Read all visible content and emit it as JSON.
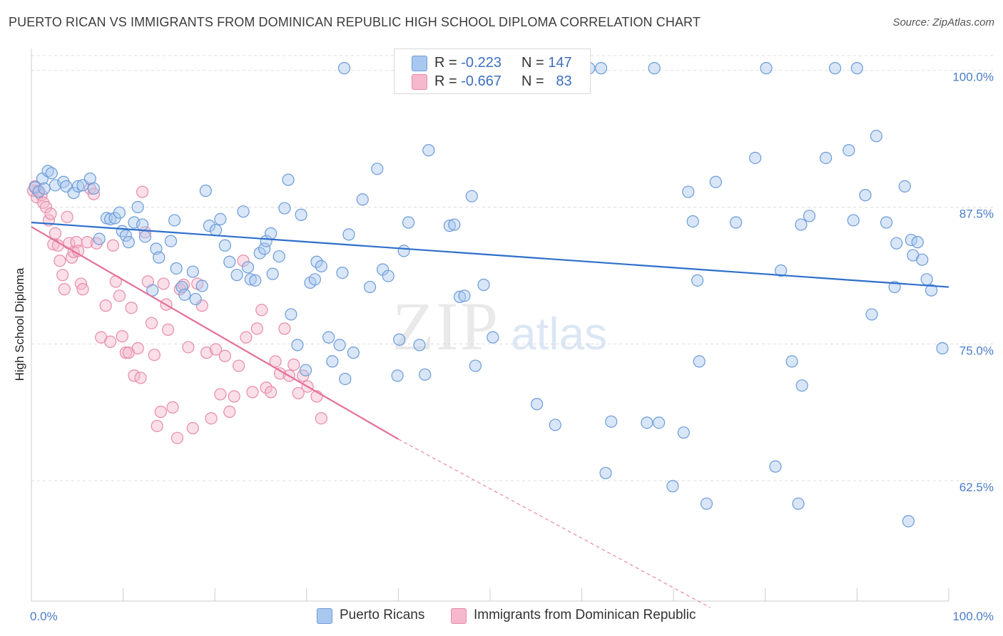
{
  "title": "PUERTO RICAN VS IMMIGRANTS FROM DOMINICAN REPUBLIC HIGH SCHOOL DIPLOMA CORRELATION CHART",
  "source": "Source: ZipAtlas.com",
  "watermark": {
    "zip": "ZIP",
    "atlas": "atlas"
  },
  "legend": {
    "rows": [
      {
        "r_label": "R =",
        "r_value": "-0.223",
        "n_label": "N =",
        "n_value": "147"
      },
      {
        "r_label": "R =",
        "r_value": "-0.667",
        "n_label": "N =",
        "n_value": "83"
      }
    ]
  },
  "bottom_legend": [
    "Puerto Ricans",
    "Immigrants from Dominican Republic"
  ],
  "colors": {
    "blue_fill": "#a9c8f0",
    "blue_stroke": "#6c9bd8",
    "blue_line": "#2e6fcb",
    "pink_fill": "#f5b8cc",
    "pink_stroke": "#e88aa8",
    "pink_line": "#e4709a",
    "tick_text": "#4a7cc9",
    "grid": "#dddddd"
  },
  "chart_data": {
    "type": "scatter",
    "title": "PUERTO RICAN VS IMMIGRANTS FROM DOMINICAN REPUBLIC HIGH SCHOOL DIPLOMA CORRELATION CHART",
    "xlabel": "",
    "ylabel": "High School Diploma",
    "xlim": [
      0,
      100
    ],
    "ylim": [
      51.5,
      102
    ],
    "x_tick_labels": [
      "0.0%",
      "100.0%"
    ],
    "y_ticks": [
      62.5,
      75.0,
      87.5,
      100.0
    ],
    "y_tick_labels": [
      "62.5%",
      "75.0%",
      "87.5%",
      "100.0%"
    ],
    "grid": true,
    "legend_position": "top-center",
    "series": [
      {
        "name": "Puerto Ricans",
        "r": -0.223,
        "n": 147,
        "trend": {
          "x": [
            0,
            100
          ],
          "y": [
            86.1,
            80.2
          ]
        },
        "points": [
          [
            0.4,
            89.3
          ],
          [
            0.8,
            88.9
          ],
          [
            1.2,
            90.1
          ],
          [
            1.8,
            90.8
          ],
          [
            1.4,
            89.2
          ],
          [
            2.2,
            90.6
          ],
          [
            2.6,
            89.5
          ],
          [
            3.5,
            89.8
          ],
          [
            3.8,
            89.4
          ],
          [
            4.6,
            88.8
          ],
          [
            5.1,
            89.4
          ],
          [
            5.6,
            89.5
          ],
          [
            6.4,
            90.1
          ],
          [
            6.8,
            89.2
          ],
          [
            7.4,
            84.6
          ],
          [
            8.2,
            86.5
          ],
          [
            8.6,
            86.4
          ],
          [
            9.1,
            86.5
          ],
          [
            9.6,
            87.0
          ],
          [
            9.9,
            85.3
          ],
          [
            10.3,
            84.9
          ],
          [
            10.6,
            84.3
          ],
          [
            11.2,
            86.1
          ],
          [
            11.6,
            87.5
          ],
          [
            12.1,
            85.9
          ],
          [
            12.4,
            84.8
          ],
          [
            13.6,
            83.7
          ],
          [
            13.9,
            82.9
          ],
          [
            15.6,
            86.3
          ],
          [
            15.2,
            84.4
          ],
          [
            13.2,
            79.9
          ],
          [
            15.8,
            81.9
          ],
          [
            16.4,
            80.2
          ],
          [
            16.7,
            79.5
          ],
          [
            17.6,
            81.6
          ],
          [
            17.9,
            79.1
          ],
          [
            18.6,
            80.3
          ],
          [
            19.0,
            89.0
          ],
          [
            19.4,
            85.8
          ],
          [
            20.1,
            85.4
          ],
          [
            20.6,
            86.4
          ],
          [
            21.1,
            84.0
          ],
          [
            21.6,
            82.5
          ],
          [
            22.4,
            81.3
          ],
          [
            23.1,
            87.1
          ],
          [
            23.6,
            82.0
          ],
          [
            23.9,
            80.9
          ],
          [
            24.4,
            80.8
          ],
          [
            24.9,
            83.3
          ],
          [
            25.4,
            83.7
          ],
          [
            25.6,
            84.4
          ],
          [
            26.1,
            85.1
          ],
          [
            26.3,
            81.4
          ],
          [
            27.0,
            83.0
          ],
          [
            27.6,
            87.4
          ],
          [
            28.0,
            90.0
          ],
          [
            28.3,
            77.7
          ],
          [
            29.0,
            74.9
          ],
          [
            29.4,
            86.8
          ],
          [
            29.9,
            72.6
          ],
          [
            30.4,
            80.6
          ],
          [
            31.1,
            82.5
          ],
          [
            30.9,
            80.9
          ],
          [
            31.6,
            82.1
          ],
          [
            32.4,
            75.6
          ],
          [
            32.8,
            73.4
          ],
          [
            33.6,
            74.9
          ],
          [
            33.9,
            81.5
          ],
          [
            34.2,
            71.8
          ],
          [
            34.6,
            85.0
          ],
          [
            35.1,
            74.2
          ],
          [
            34.1,
            100.2
          ],
          [
            36.1,
            88.2
          ],
          [
            36.9,
            80.2
          ],
          [
            37.7,
            91.0
          ],
          [
            38.3,
            81.8
          ],
          [
            38.9,
            81.2
          ],
          [
            40.1,
            75.4
          ],
          [
            39.9,
            72.1
          ],
          [
            40.6,
            83.5
          ],
          [
            41.1,
            86.1
          ],
          [
            42.3,
            74.9
          ],
          [
            42.9,
            72.2
          ],
          [
            43.3,
            92.7
          ],
          [
            45.6,
            85.8
          ],
          [
            46.1,
            85.9
          ],
          [
            46.7,
            79.3
          ],
          [
            47.2,
            79.4
          ],
          [
            48.0,
            88.5
          ],
          [
            48.4,
            73.0
          ],
          [
            49.3,
            80.4
          ],
          [
            50.3,
            75.6
          ],
          [
            55.1,
            69.5
          ],
          [
            57.1,
            67.6
          ],
          [
            58.9,
            100.2
          ],
          [
            60.8,
            100.2
          ],
          [
            62.1,
            100.2
          ],
          [
            62.6,
            63.2
          ],
          [
            63.2,
            67.9
          ],
          [
            67.1,
            67.8
          ],
          [
            67.9,
            100.2
          ],
          [
            68.4,
            67.8
          ],
          [
            69.9,
            62.0
          ],
          [
            71.1,
            66.9
          ],
          [
            71.6,
            88.9
          ],
          [
            72.1,
            86.2
          ],
          [
            72.6,
            80.8
          ],
          [
            72.8,
            73.4
          ],
          [
            73.6,
            60.4
          ],
          [
            74.6,
            89.8
          ],
          [
            76.8,
            86.1
          ],
          [
            78.9,
            92.0
          ],
          [
            80.1,
            100.2
          ],
          [
            81.1,
            63.8
          ],
          [
            81.7,
            81.7
          ],
          [
            82.9,
            73.4
          ],
          [
            83.6,
            60.4
          ],
          [
            83.9,
            85.9
          ],
          [
            84.8,
            86.7
          ],
          [
            84.0,
            71.2
          ],
          [
            86.6,
            92.0
          ],
          [
            87.6,
            100.2
          ],
          [
            89.1,
            92.7
          ],
          [
            89.6,
            86.3
          ],
          [
            90.0,
            100.2
          ],
          [
            90.9,
            88.6
          ],
          [
            91.6,
            77.7
          ],
          [
            92.1,
            94.0
          ],
          [
            93.2,
            86.1
          ],
          [
            94.1,
            80.2
          ],
          [
            94.3,
            84.2
          ],
          [
            95.2,
            89.4
          ],
          [
            95.6,
            58.8
          ],
          [
            95.9,
            84.5
          ],
          [
            96.1,
            83.1
          ],
          [
            96.6,
            84.3
          ],
          [
            97.1,
            82.7
          ],
          [
            97.6,
            80.9
          ],
          [
            98.1,
            79.9
          ],
          [
            99.3,
            74.6
          ]
        ]
      },
      {
        "name": "Immigrants from Dominican Republic",
        "r": -0.667,
        "n": 83,
        "trend": {
          "x": [
            0,
            40
          ],
          "y": [
            85.7,
            66.3
          ],
          "dashed_to": {
            "x": 74,
            "y": 50.9
          }
        },
        "points": [
          [
            0.2,
            89.0
          ],
          [
            0.4,
            89.4
          ],
          [
            0.6,
            88.4
          ],
          [
            0.8,
            89.0
          ],
          [
            1.1,
            88.6
          ],
          [
            1.3,
            87.9
          ],
          [
            1.6,
            87.5
          ],
          [
            1.9,
            86.3
          ],
          [
            2.1,
            86.9
          ],
          [
            2.4,
            84.1
          ],
          [
            2.6,
            85.1
          ],
          [
            2.9,
            84.0
          ],
          [
            3.1,
            82.6
          ],
          [
            3.4,
            81.3
          ],
          [
            3.6,
            80.0
          ],
          [
            3.9,
            86.6
          ],
          [
            4.1,
            84.2
          ],
          [
            4.4,
            82.9
          ],
          [
            4.6,
            83.4
          ],
          [
            4.9,
            84.3
          ],
          [
            5.1,
            83.5
          ],
          [
            5.4,
            80.5
          ],
          [
            5.6,
            80.0
          ],
          [
            6.1,
            84.3
          ],
          [
            6.4,
            89.2
          ],
          [
            6.8,
            88.7
          ],
          [
            7.1,
            84.2
          ],
          [
            7.6,
            75.6
          ],
          [
            8.1,
            78.5
          ],
          [
            8.6,
            75.2
          ],
          [
            8.9,
            84.0
          ],
          [
            9.2,
            80.7
          ],
          [
            9.6,
            79.4
          ],
          [
            9.9,
            75.7
          ],
          [
            10.3,
            74.2
          ],
          [
            10.6,
            74.2
          ],
          [
            10.9,
            78.3
          ],
          [
            11.2,
            72.1
          ],
          [
            11.6,
            74.6
          ],
          [
            11.9,
            71.9
          ],
          [
            12.1,
            88.9
          ],
          [
            12.4,
            85.2
          ],
          [
            12.7,
            80.7
          ],
          [
            13.1,
            76.9
          ],
          [
            13.4,
            74.0
          ],
          [
            13.7,
            67.5
          ],
          [
            14.1,
            68.8
          ],
          [
            14.4,
            80.5
          ],
          [
            14.7,
            78.6
          ],
          [
            14.9,
            76.3
          ],
          [
            15.4,
            69.2
          ],
          [
            15.9,
            66.4
          ],
          [
            16.2,
            80.0
          ],
          [
            16.6,
            80.4
          ],
          [
            17.1,
            74.7
          ],
          [
            17.6,
            67.3
          ],
          [
            18.1,
            80.5
          ],
          [
            18.6,
            78.5
          ],
          [
            19.1,
            74.2
          ],
          [
            19.6,
            68.2
          ],
          [
            20.1,
            74.5
          ],
          [
            20.6,
            70.4
          ],
          [
            21.1,
            73.9
          ],
          [
            21.6,
            68.8
          ],
          [
            22.1,
            70.2
          ],
          [
            22.6,
            73.0
          ],
          [
            23.1,
            82.6
          ],
          [
            23.4,
            75.6
          ],
          [
            24.1,
            70.6
          ],
          [
            24.6,
            76.4
          ],
          [
            25.1,
            78.1
          ],
          [
            25.6,
            71.0
          ],
          [
            26.1,
            70.6
          ],
          [
            26.6,
            73.4
          ],
          [
            27.1,
            72.3
          ],
          [
            27.6,
            76.4
          ],
          [
            28.1,
            72.1
          ],
          [
            28.6,
            73.1
          ],
          [
            29.1,
            70.5
          ],
          [
            29.6,
            72.1
          ],
          [
            30.1,
            71.1
          ],
          [
            31.1,
            70.2
          ],
          [
            31.6,
            68.2
          ]
        ]
      }
    ]
  }
}
